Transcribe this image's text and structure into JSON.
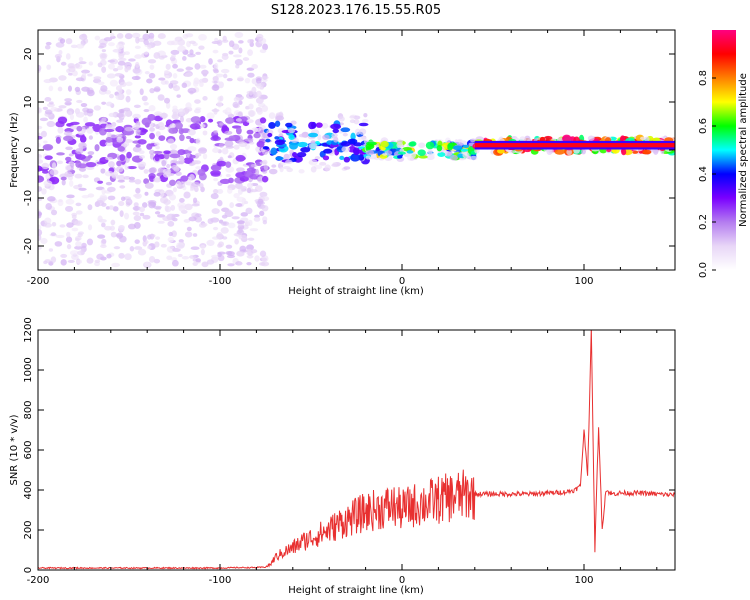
{
  "title": "S128.2023.176.15.55.R05",
  "chart_data": [
    {
      "type": "heatmap",
      "xlabel": "Height of straight line (km)",
      "ylabel": "Frequency (Hz)",
      "xlim": [
        -200,
        150
      ],
      "ylim": [
        -25,
        25
      ],
      "xticks": [
        -200,
        -100,
        0,
        100
      ],
      "yticks": [
        -20,
        -10,
        0,
        10,
        20
      ],
      "colorbar": {
        "label": "Normalized spectral amplitude",
        "range": [
          0,
          1
        ],
        "ticks": [
          0.0,
          0.2,
          0.4,
          0.6,
          0.8
        ],
        "tick_labels": [
          "0.0",
          "0.2",
          "0.4",
          "0.6",
          "0.8"
        ],
        "colors": [
          "#ffffff",
          "#e8d6f7",
          "#b47cf0",
          "#7a00ff",
          "#0000ff",
          "#00ffff",
          "#00ff00",
          "#ffff00",
          "#ff8000",
          "#ff0000",
          "#ff0080"
        ]
      },
      "segments": [
        {
          "x_from": -200,
          "x_to": -75,
          "center_hz": 0,
          "band_hz": 7,
          "scatter_hz": 24,
          "level": 0.12
        },
        {
          "x_from": -75,
          "x_to": -20,
          "center_hz": 1.5,
          "band_hz": 4,
          "scatter_hz": 6,
          "level": 0.35
        },
        {
          "x_from": -20,
          "x_to": 40,
          "center_hz": 0,
          "band_hz": 1.5,
          "scatter_hz": 2,
          "level": 0.6
        },
        {
          "x_from": 40,
          "x_to": 150,
          "center_hz": 1,
          "band_hz": 1.5,
          "scatter_hz": 1.5,
          "level": 0.9
        }
      ]
    },
    {
      "type": "line",
      "xlabel": "Height of straight line (km)",
      "ylabel": "SNR (10 * v/v)",
      "xlim": [
        -200,
        150
      ],
      "ylim": [
        0,
        1200
      ],
      "xticks": [
        -200,
        -100,
        0,
        100
      ],
      "yticks": [
        0,
        200,
        400,
        600,
        800,
        1000,
        1200
      ],
      "color": "#e83030",
      "series": [
        {
          "x": [
            -200,
            -180,
            -160,
            -140,
            -120,
            -100,
            -90,
            -80,
            -75,
            -72,
            -70,
            -65,
            -60,
            -55,
            -50,
            -45,
            -40,
            -35,
            -30,
            -25,
            -20,
            -15,
            -10,
            -5,
            0,
            5,
            10,
            15,
            20,
            25,
            30,
            35,
            40,
            50,
            60,
            70,
            80,
            90,
            95,
            98,
            100,
            102,
            104,
            106,
            108,
            110,
            112,
            115,
            120,
            130,
            140,
            150
          ],
          "y": [
            10,
            10,
            10,
            10,
            10,
            10,
            12,
            12,
            15,
            30,
            60,
            90,
            110,
            140,
            160,
            180,
            200,
            230,
            250,
            270,
            290,
            300,
            310,
            320,
            300,
            320,
            330,
            340,
            350,
            360,
            370,
            375,
            380,
            380,
            380,
            380,
            385,
            390,
            400,
            420,
            700,
            480,
            1200,
            100,
            720,
            200,
            400,
            380,
            385,
            385,
            380,
            375
          ]
        }
      ]
    }
  ]
}
